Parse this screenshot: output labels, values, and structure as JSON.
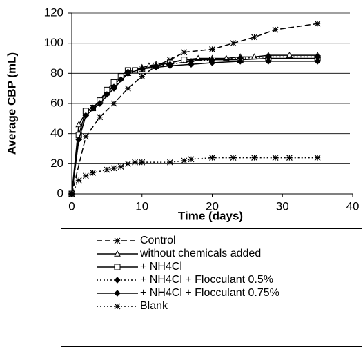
{
  "chart_data": {
    "type": "line",
    "xlabel": "Time (days)",
    "ylabel": "Average CBP (mL)",
    "xlim": [
      0,
      40
    ],
    "xticks": [
      0,
      10,
      20,
      30,
      40
    ],
    "ylim": [
      0,
      120
    ],
    "yticks": [
      0,
      20,
      40,
      60,
      80,
      100,
      120
    ],
    "grid": true,
    "legend": "bottom",
    "series": [
      {
        "name": "Control",
        "color": "#000000",
        "dash": "8,4",
        "marker": "star",
        "x": [
          0,
          2,
          4,
          6,
          8,
          10,
          12,
          14,
          16,
          20,
          23,
          26,
          29,
          35
        ],
        "values": [
          0,
          38,
          51,
          60,
          70,
          78,
          85,
          89,
          94,
          96,
          100,
          104,
          109,
          113
        ]
      },
      {
        "name": "without chemicals added",
        "color": "#000000",
        "dash": "none",
        "marker": "triangle",
        "x": [
          0,
          1,
          2,
          3,
          4,
          5,
          6,
          7,
          8,
          9,
          10,
          11,
          12,
          14,
          16,
          18,
          20,
          22,
          24,
          26,
          28,
          31,
          35
        ],
        "values": [
          0,
          46,
          54,
          57,
          62,
          67,
          72,
          77,
          80,
          82,
          84,
          85,
          86,
          87,
          89,
          90,
          90,
          90,
          91,
          91,
          92,
          92,
          92
        ]
      },
      {
        "name": "+ NH4Cl",
        "color": "#000000",
        "dash": "none",
        "marker": "square",
        "x": [
          0,
          1,
          2,
          3,
          4,
          5,
          6,
          7,
          8,
          9,
          10,
          12,
          14,
          16,
          20,
          24,
          28,
          35
        ],
        "values": [
          0,
          39,
          55,
          57,
          62,
          69,
          74,
          78,
          82,
          82,
          83,
          85,
          87,
          89,
          89,
          89,
          90,
          90
        ]
      },
      {
        "name": "+ NH4Cl + Flocculant 0.5%",
        "color": "#000000",
        "dash": "2,3",
        "marker": "diamond",
        "x": [
          0,
          1,
          2,
          3,
          4,
          5,
          6,
          7,
          8,
          10,
          12,
          14,
          17,
          20,
          24,
          28,
          35
        ],
        "values": [
          0,
          36,
          52,
          57,
          60,
          66,
          71,
          76,
          81,
          83,
          85,
          86,
          88,
          89,
          90,
          91,
          91
        ]
      },
      {
        "name": "+ NH4Cl + Flocculant 0.75%",
        "color": "#000000",
        "dash": "none",
        "marker": "diamond",
        "x": [
          0,
          1,
          2,
          4,
          6,
          8,
          10,
          12,
          14,
          17,
          20,
          24,
          28,
          35
        ],
        "values": [
          0,
          36,
          52,
          60,
          70,
          80,
          83,
          84,
          85,
          86,
          87,
          88,
          88,
          88
        ]
      },
      {
        "name": "Blank",
        "color": "#000000",
        "dash": "2,3",
        "marker": "star",
        "x": [
          0,
          1,
          2,
          3,
          5,
          6,
          7,
          8,
          9,
          10,
          14,
          16,
          17,
          20,
          23,
          26,
          29,
          31,
          35
        ],
        "values": [
          0,
          9,
          12,
          14,
          16,
          17,
          18,
          20,
          21,
          21,
          21,
          22,
          23,
          24,
          24,
          24,
          24,
          24,
          24
        ]
      }
    ]
  }
}
